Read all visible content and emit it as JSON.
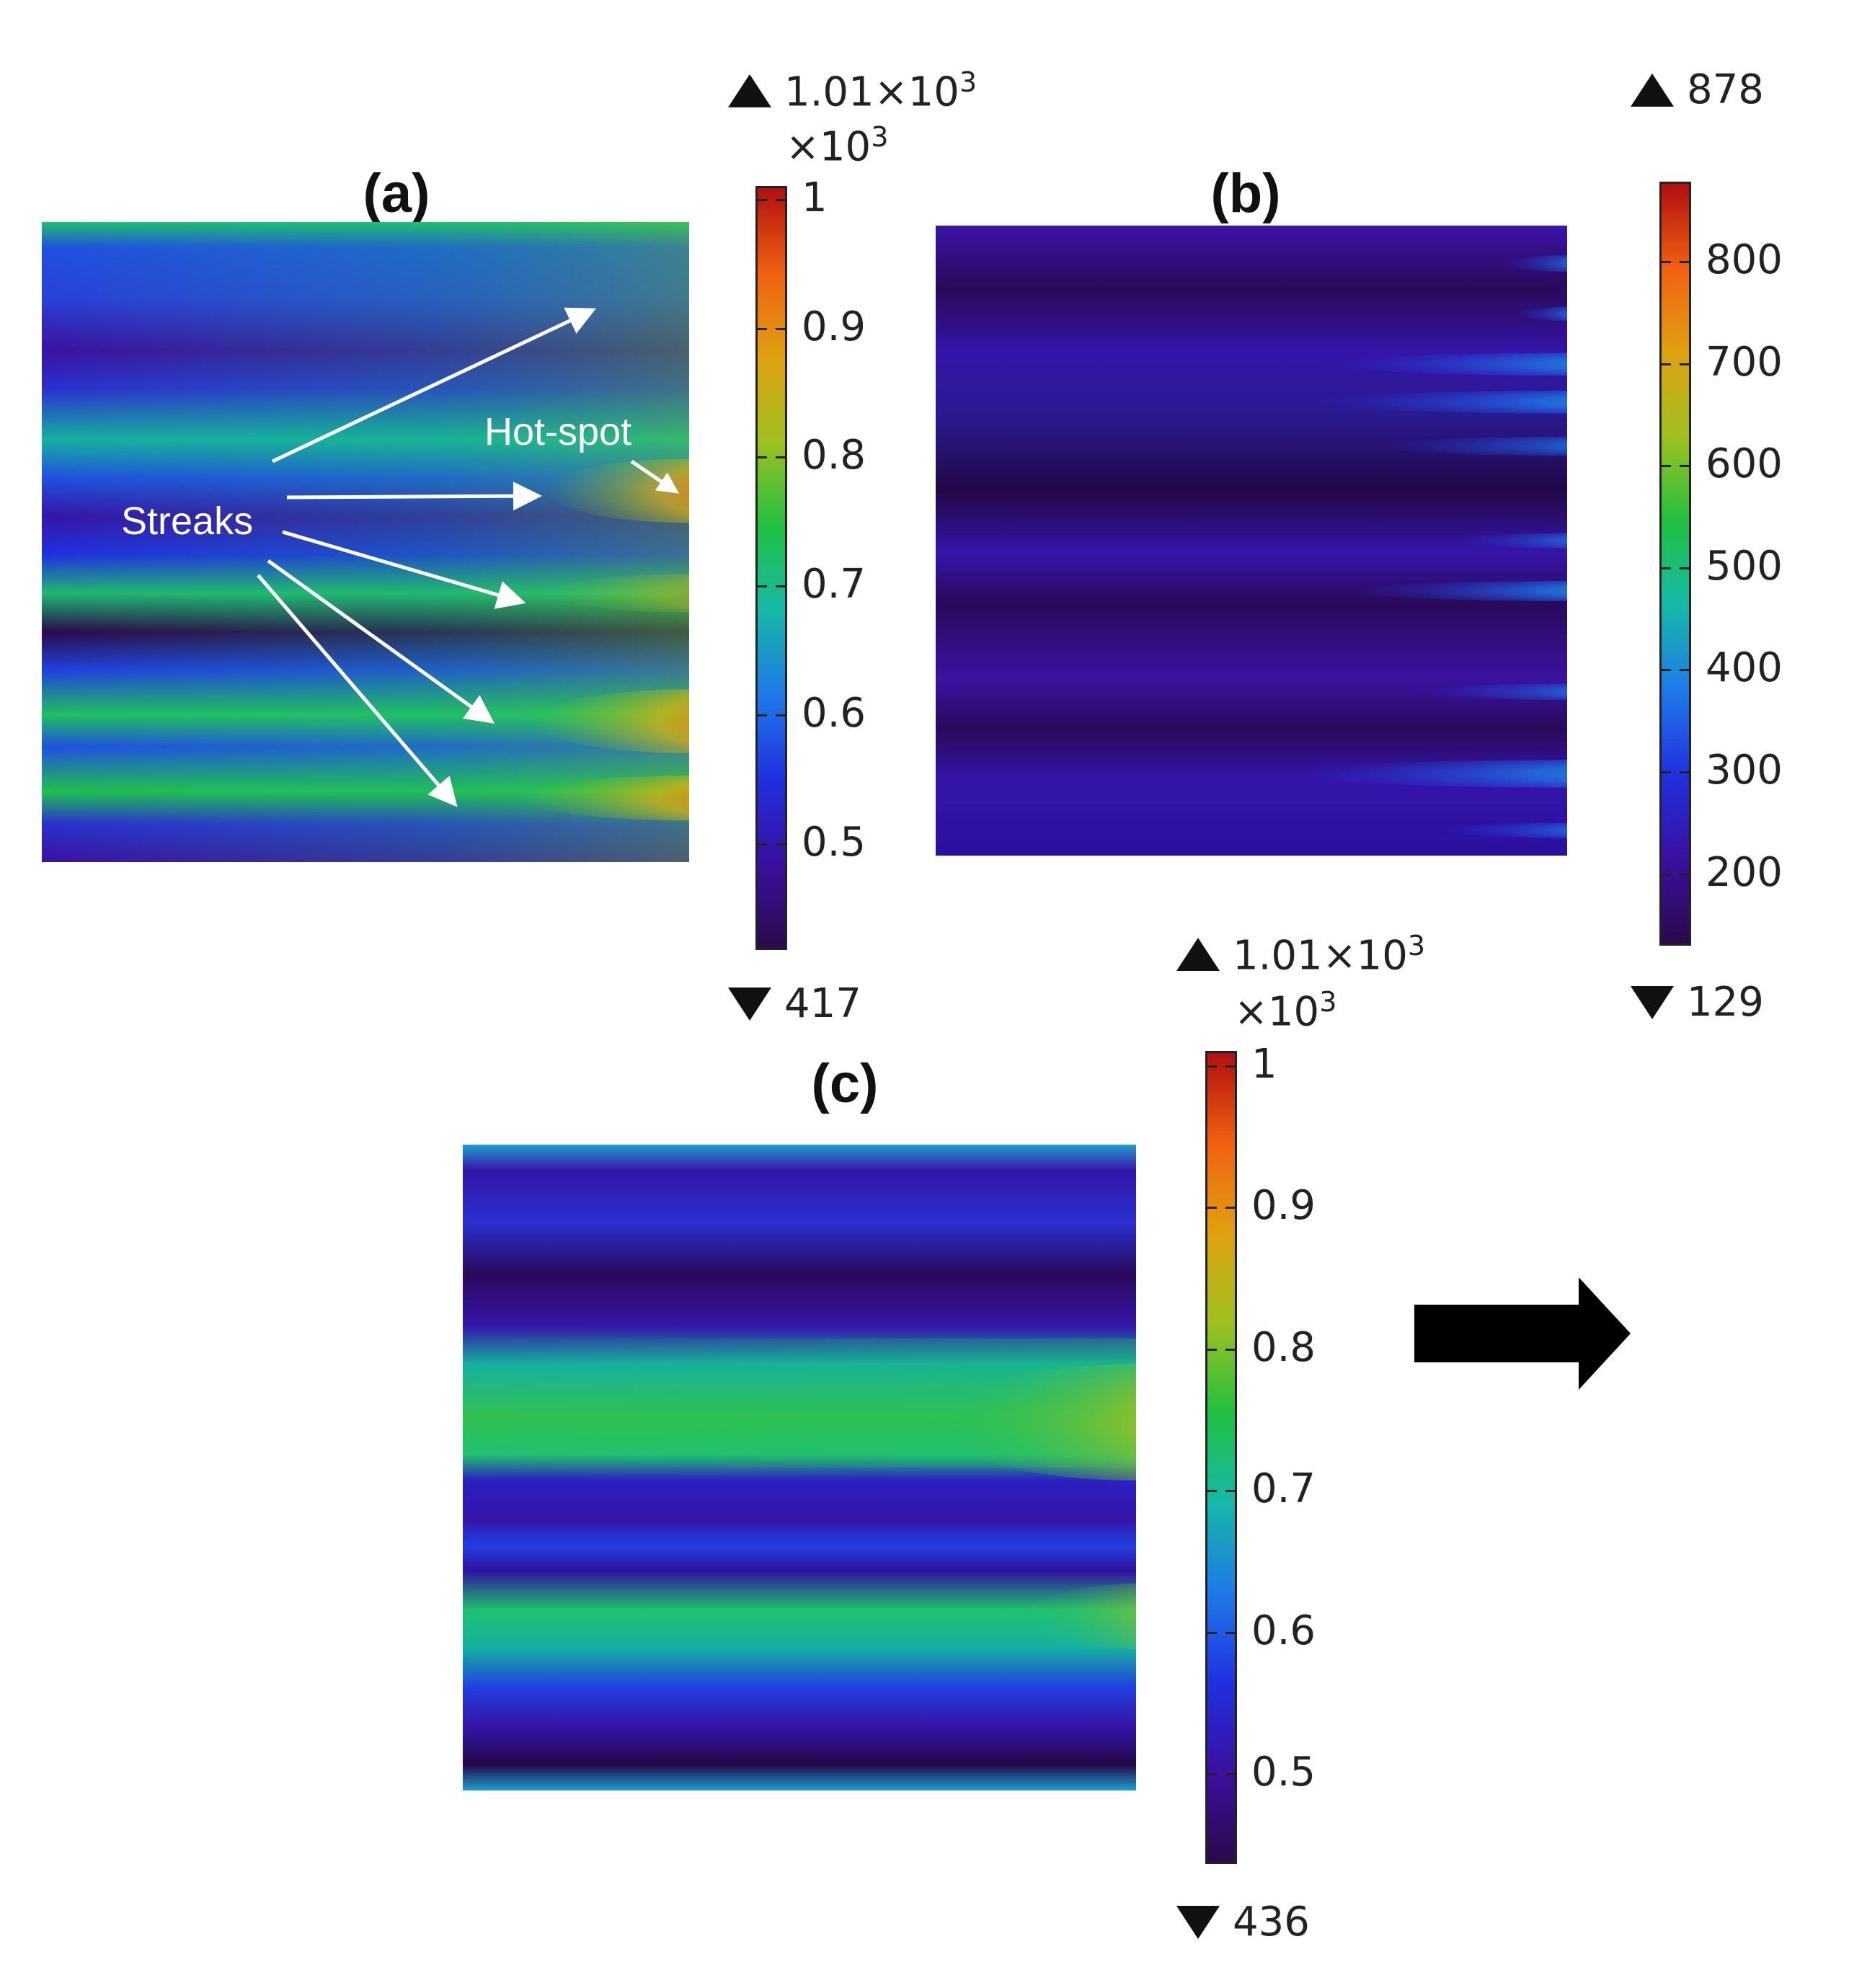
{
  "chart_data": [
    {
      "type": "heatmap",
      "panel": "(a)",
      "colorbar": {
        "max_label": "1.01×10",
        "max_exp": "3",
        "multiplier": "×10",
        "multiplier_exp": "3",
        "min_label": "417",
        "ticks": [
          "1",
          "0.9",
          "0.8",
          "0.7",
          "0.6",
          "0.5"
        ],
        "tick_values": [
          1.0,
          0.9,
          0.8,
          0.7,
          0.6,
          0.5
        ],
        "range": [
          0.417,
          1.01
        ]
      },
      "annotations": {
        "streaks": "Streaks",
        "hotspot": "Hot-spot"
      }
    },
    {
      "type": "heatmap",
      "panel": "(b)",
      "colorbar": {
        "max_label": "878",
        "min_label": "129",
        "ticks": [
          "800",
          "700",
          "600",
          "500",
          "400",
          "300",
          "200"
        ],
        "tick_values": [
          800,
          700,
          600,
          500,
          400,
          300,
          200
        ],
        "range": [
          129,
          878
        ]
      }
    },
    {
      "type": "heatmap",
      "panel": "(c)",
      "colorbar": {
        "max_label": "1.01×10",
        "max_exp": "3",
        "multiplier": "×10",
        "multiplier_exp": "3",
        "min_label": "436",
        "ticks": [
          "1",
          "0.9",
          "0.8",
          "0.7",
          "0.6",
          "0.5"
        ],
        "tick_values": [
          1.0,
          0.9,
          0.8,
          0.7,
          0.6,
          0.5
        ],
        "range": [
          0.436,
          1.01
        ]
      }
    }
  ],
  "colormap": [
    "#2a0a4a",
    "#3a10a0",
    "#2030e0",
    "#1f7ae8",
    "#16b8a8",
    "#20c040",
    "#9ec020",
    "#e0a010",
    "#f06010",
    "#b01010"
  ]
}
